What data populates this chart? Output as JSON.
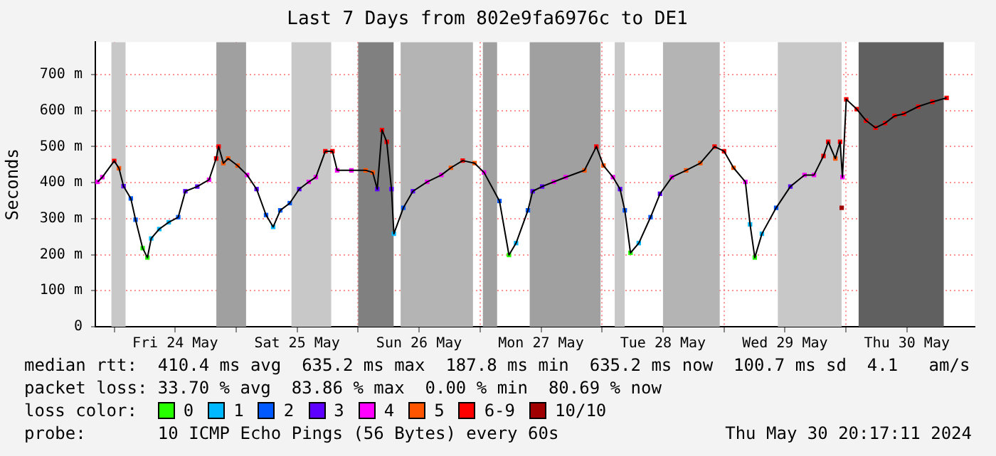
{
  "chart_data": {
    "type": "line",
    "title": "Last 7 Days from 802e9fa6976c to DE1",
    "ylabel": "Seconds",
    "legend_title": "loss color:",
    "legend": "bottom",
    "grid": true,
    "marker": "square",
    "xlim": [
      "2024-05-23T20:17",
      "2024-05-31T01:20"
    ],
    "xticks": [
      {
        "value": "2024-05-24T00:00",
        "label": null
      },
      {
        "value": "2024-05-24T12:00",
        "label": "Fri 24 May"
      },
      {
        "value": "2024-05-25T00:00",
        "label": null
      },
      {
        "value": "2024-05-25T12:00",
        "label": "Sat 25 May"
      },
      {
        "value": "2024-05-26T00:00",
        "label": null
      },
      {
        "value": "2024-05-26T12:00",
        "label": "Sun 26 May"
      },
      {
        "value": "2024-05-27T00:00",
        "label": null
      },
      {
        "value": "2024-05-27T12:00",
        "label": "Mon 27 May"
      },
      {
        "value": "2024-05-28T00:00",
        "label": null
      },
      {
        "value": "2024-05-28T12:00",
        "label": "Tue 28 May"
      },
      {
        "value": "2024-05-29T00:00",
        "label": null
      },
      {
        "value": "2024-05-29T12:00",
        "label": "Wed 29 May"
      },
      {
        "value": "2024-05-30T00:00",
        "label": null
      },
      {
        "value": "2024-05-30T12:00",
        "label": "Thu 30 May"
      }
    ],
    "ylim": [
      0,
      790
    ],
    "yticks": [
      0,
      {
        "value": 100,
        "label": "100 m"
      },
      {
        "value": 200,
        "label": "200 m"
      },
      {
        "value": 300,
        "label": "300 m"
      },
      {
        "value": 400,
        "label": "400 m"
      },
      {
        "value": 500,
        "label": "500 m"
      },
      {
        "value": 600,
        "label": "600 m"
      },
      {
        "value": 700,
        "label": "700 m"
      }
    ],
    "bands": [
      {
        "axis": "x",
        "from": "2024-05-23T23:27",
        "to": "2024-05-24T02:14",
        "color": "#c8c8c8"
      },
      {
        "axis": "x",
        "from": "2024-05-24T20:06",
        "to": "2024-05-25T01:57",
        "color": "#a0a0a0"
      },
      {
        "axis": "x",
        "from": "2024-05-25T10:53",
        "to": "2024-05-25T18:42",
        "color": "#c8c8c8"
      },
      {
        "axis": "x",
        "from": "2024-05-26T00:00",
        "to": "2024-05-26T06:59",
        "color": "#808080"
      },
      {
        "axis": "x",
        "from": "2024-05-26T08:22",
        "to": "2024-05-26T22:36",
        "color": "#b4b4b4"
      },
      {
        "axis": "x",
        "from": "2024-05-27T00:33",
        "to": "2024-05-27T03:21",
        "color": "#a0a0a0"
      },
      {
        "axis": "x",
        "from": "2024-05-27T09:46",
        "to": "2024-05-27T23:43",
        "color": "#a0a0a0"
      },
      {
        "axis": "x",
        "from": "2024-05-28T02:30",
        "to": "2024-05-28T04:28",
        "color": "#c8c8c8"
      },
      {
        "axis": "x",
        "from": "2024-05-28T12:00",
        "to": "2024-05-28T23:10",
        "color": "#b4b4b4"
      },
      {
        "axis": "x",
        "from": "2024-05-29T10:36",
        "to": "2024-05-29T23:09",
        "color": "#c8c8c8"
      },
      {
        "axis": "x",
        "from": "2024-05-30T02:30",
        "to": "2024-05-30T19:15",
        "color": "#606060"
      }
    ],
    "series": [
      {
        "type": "line",
        "color": "#000000",
        "marker": "none",
        "x": [
          "2024-05-23T20:44",
          "2024-05-23T21:40",
          "2024-05-24T00:00",
          "2024-05-24T00:56",
          "2024-05-24T01:50",
          "2024-05-24T03:16",
          "2024-05-24T04:12",
          "2024-05-24T05:36",
          "2024-05-24T06:32",
          "2024-05-24T07:17",
          "2024-05-24T08:52",
          "2024-05-24T10:44",
          "2024-05-24T12:36",
          "2024-05-24T14:00",
          "2024-05-24T16:21",
          "2024-05-24T18:40",
          "2024-05-24T20:04",
          "2024-05-24T20:33",
          "2024-05-24T21:29",
          "2024-05-24T22:25",
          "2024-05-25T00:17",
          "2024-05-25T02:09",
          "2024-05-25T04:01",
          "2024-05-25T05:53",
          "2024-05-25T07:17",
          "2024-05-25T08:41",
          "2024-05-25T10:33",
          "2024-05-25T12:25",
          "2024-05-25T14:17",
          "2024-05-25T15:41",
          "2024-05-25T17:33",
          "2024-05-25T18:57",
          "2024-05-25T19:53",
          "2024-05-25T22:41",
          "2024-05-26T01:29",
          "2024-05-26T02:53",
          "2024-05-26T03:46",
          "2024-05-26T04:42",
          "2024-05-26T05:38",
          "2024-05-26T06:34",
          "2024-05-26T07:02",
          "2024-05-26T08:54",
          "2024-05-26T10:47",
          "2024-05-26T13:35",
          "2024-05-26T16:23",
          "2024-05-26T18:15",
          "2024-05-26T20:35",
          "2024-05-26T22:55",
          "2024-05-27T00:47",
          "2024-05-27T03:49",
          "2024-05-27T05:41",
          "2024-05-27T07:05",
          "2024-05-27T09:25",
          "2024-05-27T10:21",
          "2024-05-27T12:13",
          "2024-05-27T14:31",
          "2024-05-27T16:50",
          "2024-05-27T20:33",
          "2024-05-27T22:53",
          "2024-05-28T00:17",
          "2024-05-28T02:09",
          "2024-05-28T03:33",
          "2024-05-28T04:29",
          "2024-05-28T05:36",
          "2024-05-28T07:14",
          "2024-05-28T09:33",
          "2024-05-28T11:25",
          "2024-05-28T13:45",
          "2024-05-28T16:33",
          "2024-05-28T19:21",
          "2024-05-28T22:09",
          "2024-05-29T00:01",
          "2024-05-29T01:53",
          "2024-05-29T04:13",
          "2024-05-29T05:08",
          "2024-05-29T06:04",
          "2024-05-29T07:28",
          "2024-05-29T10:16",
          "2024-05-29T13:04",
          "2024-05-29T15:51",
          "2024-05-29T17:43",
          "2024-05-29T19:35",
          "2024-05-29T20:31",
          "2024-05-29T21:55",
          "2024-05-29T22:51",
          "2024-05-29T23:19",
          "2024-05-30T00:04",
          "2024-05-30T02:07",
          "2024-05-30T03:58",
          "2024-05-30T05:50",
          "2024-05-30T07:42",
          "2024-05-30T09:34",
          "2024-05-30T11:26",
          "2024-05-30T14:14",
          "2024-05-30T17:01",
          "2024-05-30T19:49"
        ],
        "values": [
          402,
          415,
          460,
          440,
          390,
          356,
          297,
          218,
          192,
          245,
          271,
          290,
          304,
          376,
          389,
          408,
          467,
          500,
          454,
          467,
          447,
          421,
          382,
          310,
          277,
          323,
          343,
          382,
          402,
          415,
          487,
          487,
          434,
          434,
          434,
          428,
          382,
          546,
          513,
          382,
          258,
          330,
          376,
          402,
          421,
          441,
          461,
          454,
          428,
          349,
          199,
          232,
          323,
          376,
          389,
          402,
          415,
          434,
          500,
          447,
          415,
          382,
          323,
          205,
          232,
          304,
          369,
          415,
          434,
          454,
          500,
          487,
          441,
          402,
          284,
          192,
          258,
          330,
          389,
          421,
          421,
          474,
          513,
          467,
          513,
          415,
          631,
          604,
          572,
          552,
          565,
          585,
          591,
          611,
          624,
          635
        ]
      },
      {
        "type": "scatter",
        "name": "0",
        "color": "#26ff00",
        "x": [
          "2024-05-24T05:36",
          "2024-05-24T06:32",
          "2024-05-27T05:41",
          "2024-05-28T05:36",
          "2024-05-29T06:04"
        ],
        "values": [
          218,
          192,
          199,
          205,
          192
        ]
      },
      {
        "type": "scatter",
        "name": "1",
        "color": "#00b8ff",
        "x": [
          "2024-05-24T07:17",
          "2024-05-24T08:52",
          "2024-05-24T10:44",
          "2024-05-25T07:17",
          "2024-05-26T07:02",
          "2024-05-27T07:05",
          "2024-05-28T07:14",
          "2024-05-29T05:08",
          "2024-05-29T07:28"
        ],
        "values": [
          245,
          271,
          290,
          277,
          258,
          232,
          232,
          284,
          258
        ]
      },
      {
        "type": "scatter",
        "name": "2",
        "color": "#0059ff",
        "x": [
          "2024-05-24T03:16",
          "2024-05-24T04:12",
          "2024-05-24T12:36",
          "2024-05-25T05:53",
          "2024-05-25T08:41",
          "2024-05-25T10:33",
          "2024-05-26T08:54",
          "2024-05-27T03:49",
          "2024-05-27T09:25",
          "2024-05-28T04:29",
          "2024-05-28T09:33",
          "2024-05-29T10:16"
        ],
        "values": [
          356,
          297,
          304,
          310,
          323,
          343,
          330,
          349,
          323,
          323,
          304,
          330
        ]
      },
      {
        "type": "scatter",
        "name": "3",
        "color": "#5e00ff",
        "x": [
          "2024-05-24T01:50",
          "2024-05-24T14:00",
          "2024-05-24T16:21",
          "2024-05-25T04:01",
          "2024-05-25T12:25",
          "2024-05-26T03:46",
          "2024-05-26T06:34",
          "2024-05-26T10:47",
          "2024-05-27T10:21",
          "2024-05-27T12:13",
          "2024-05-28T03:33",
          "2024-05-28T11:25",
          "2024-05-29T13:04"
        ],
        "values": [
          390,
          376,
          389,
          382,
          382,
          382,
          382,
          376,
          376,
          389,
          382,
          369,
          389
        ]
      },
      {
        "type": "scatter",
        "name": "4",
        "color": "#ff00ff",
        "x": [
          "2024-05-23T20:44",
          "2024-05-23T21:40",
          "2024-05-24T18:40",
          "2024-05-25T02:09",
          "2024-05-25T14:17",
          "2024-05-25T15:41",
          "2024-05-25T19:53",
          "2024-05-25T22:41",
          "2024-05-26T13:35",
          "2024-05-26T16:23",
          "2024-05-27T00:47",
          "2024-05-27T14:31",
          "2024-05-27T16:50",
          "2024-05-28T02:09",
          "2024-05-28T13:45",
          "2024-05-29T04:13",
          "2024-05-29T15:51",
          "2024-05-29T17:43",
          "2024-05-29T23:19"
        ],
        "values": [
          402,
          415,
          408,
          421,
          402,
          415,
          434,
          434,
          402,
          421,
          428,
          402,
          415,
          415,
          415,
          402,
          421,
          421,
          415
        ]
      },
      {
        "type": "scatter",
        "name": "5",
        "color": "#ff5500",
        "x": [
          "2024-05-24T00:56",
          "2024-05-24T21:29",
          "2024-05-24T22:25",
          "2024-05-25T00:17",
          "2024-05-26T01:29",
          "2024-05-26T02:53",
          "2024-05-26T18:15",
          "2024-05-26T22:55",
          "2024-05-27T20:33",
          "2024-05-28T00:17",
          "2024-05-28T16:33",
          "2024-05-28T19:21",
          "2024-05-29T01:53",
          "2024-05-29T21:55"
        ],
        "values": [
          440,
          454,
          467,
          447,
          434,
          428,
          441,
          454,
          434,
          447,
          434,
          454,
          441,
          467
        ]
      },
      {
        "type": "scatter",
        "name": "6-9",
        "color": "#ff0000",
        "x": [
          "2024-05-24T00:00",
          "2024-05-24T20:04",
          "2024-05-24T20:33",
          "2024-05-25T17:33",
          "2024-05-25T18:57",
          "2024-05-26T04:42",
          "2024-05-26T05:38",
          "2024-05-26T20:35",
          "2024-05-27T22:53",
          "2024-05-28T22:09",
          "2024-05-29T00:01",
          "2024-05-29T19:35",
          "2024-05-29T20:31",
          "2024-05-29T22:51",
          "2024-05-30T00:04",
          "2024-05-30T02:07",
          "2024-05-30T03:58",
          "2024-05-30T05:50",
          "2024-05-30T07:42",
          "2024-05-30T09:34",
          "2024-05-30T11:26",
          "2024-05-30T14:14",
          "2024-05-30T17:01",
          "2024-05-30T19:49"
        ],
        "values": [
          460,
          467,
          500,
          487,
          487,
          546,
          513,
          461,
          500,
          500,
          487,
          474,
          513,
          513,
          631,
          604,
          572,
          552,
          565,
          585,
          591,
          611,
          624,
          635
        ]
      },
      {
        "type": "scatter",
        "name": "10/10",
        "color": "#a00000",
        "x": [
          "2024-05-29T23:10"
        ],
        "values": [
          330
        ]
      }
    ],
    "annotations": [
      "median rtt:  410.4 ms avg  635.2 ms max  187.8 ms min  635.2 ms now  100.7 ms sd  4.1   am/s",
      "packet loss: 33.70 % avg  83.86 % max  0.00 % min  80.69 % now",
      "probe:       10 ICMP Echo Pings (56 Bytes) every 60s",
      "Thu May 30 20:17:11 2024"
    ]
  }
}
